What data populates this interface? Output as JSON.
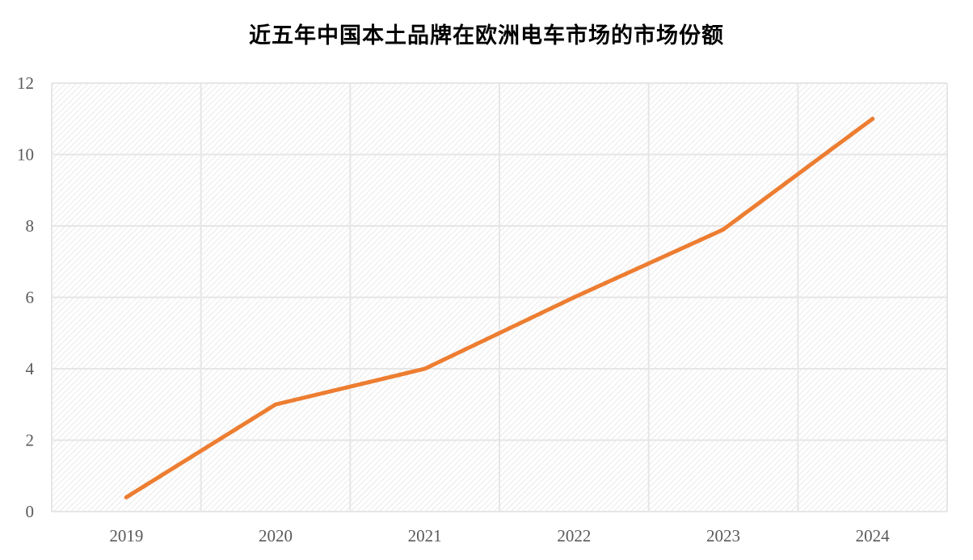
{
  "chart_data": {
    "type": "line",
    "title": "近五年中国本土品牌在欧洲电车市场的市场份额",
    "xlabel": "",
    "ylabel": "",
    "categories": [
      "2019",
      "2020",
      "2021",
      "2022",
      "2023",
      "2024"
    ],
    "series": [
      {
        "values": [
          0.4,
          3.0,
          4.0,
          6.0,
          7.9,
          11.0
        ],
        "color": "#ED7D31"
      }
    ],
    "ylim": [
      0,
      12
    ],
    "yticks": [
      0,
      2,
      4,
      6,
      8,
      10,
      12
    ],
    "grid": true,
    "legend": "none",
    "plot_background": "diagonal-hatch",
    "gridline_color": "#E6E6E6",
    "hatch_color": "#D9D9D9"
  }
}
